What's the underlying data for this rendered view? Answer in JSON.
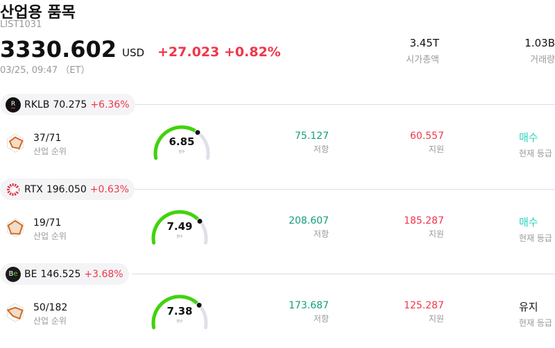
{
  "header": {
    "title": "산업용 품목",
    "code": "LIST1031",
    "price": "3330.602",
    "currency": "USD",
    "change": "+27.023",
    "change_pct": "+0.82%",
    "time": "03/25, 09:47 （ET）"
  },
  "stats": [
    {
      "value": "3.45T",
      "label": "시가총액"
    },
    {
      "value": "1.03B",
      "label": "거래량"
    }
  ],
  "labels": {
    "rank": "산업 순위",
    "resistance": "저항",
    "support": "지원",
    "grade": "현재 등급",
    "score": "점수"
  },
  "colors": {
    "up": "#f0364a",
    "resistance": "#129e7a",
    "support": "#f0364a",
    "buy": "#2fd0c0",
    "gauge": "#3fd40a",
    "gauge_track": "#e0e0ea"
  },
  "stocks": [
    {
      "ticker": "RKLB",
      "price": "70.275",
      "pct": "+6.36%",
      "logo_icon": "rocket-lab-logo",
      "rank": "37/71",
      "score": 6.85,
      "score_text": "6.85",
      "resistance": "75.127",
      "support": "60.557",
      "grade": "매수"
    },
    {
      "ticker": "RTX",
      "price": "196.050",
      "pct": "+0.63%",
      "logo_icon": "rtx-logo",
      "rank": "19/71",
      "score": 7.49,
      "score_text": "7.49",
      "resistance": "208.607",
      "support": "185.287",
      "grade": "매수"
    },
    {
      "ticker": "BE",
      "price": "146.525",
      "pct": "+3.68%",
      "logo_icon": "bloom-energy-logo",
      "rank": "50/182",
      "score": 7.38,
      "score_text": "7.38",
      "resistance": "173.687",
      "support": "125.287",
      "grade": "유지"
    }
  ]
}
